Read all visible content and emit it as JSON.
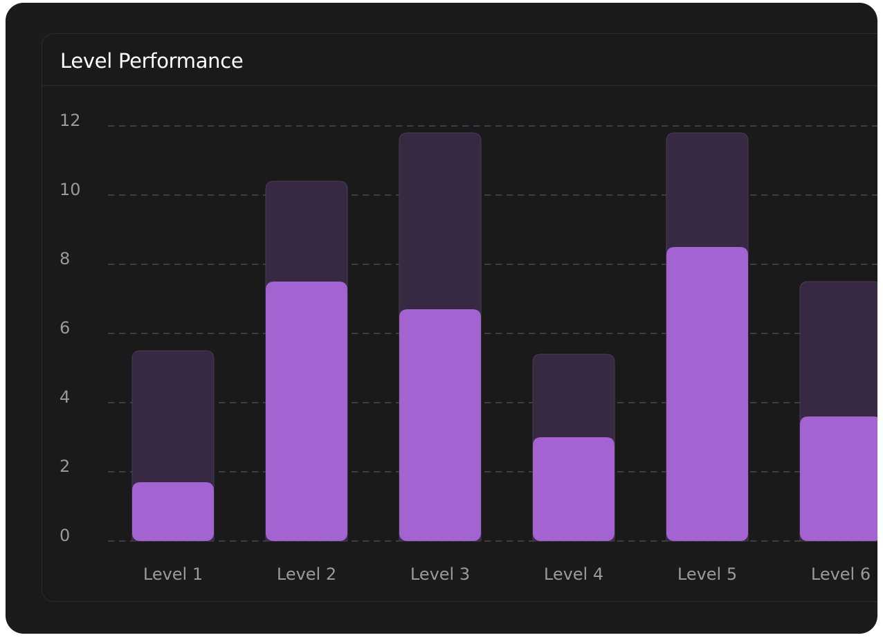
{
  "card": {
    "title": "Level Performance"
  },
  "colors": {
    "background": "#1b1b1d",
    "total_bar": "#372941",
    "value_bar": "#a363d0",
    "gridline": "#4a4a4d",
    "label": "#9a9a9d",
    "title": "#ffffff"
  },
  "chart_data": {
    "type": "bar",
    "categories": [
      "Level 1",
      "Level 2",
      "Level 3",
      "Level 4",
      "Level 5",
      "Level 6"
    ],
    "series": [
      {
        "values": [
          5.5,
          10.4,
          11.8,
          5.4,
          11.8,
          7.5
        ]
      },
      {
        "values": [
          1.7,
          7.5,
          6.7,
          3.0,
          8.5,
          3.6
        ]
      }
    ],
    "overlay": true,
    "ylim": [
      0,
      12
    ],
    "yticks": [
      0,
      2,
      4,
      6,
      8,
      10,
      12
    ],
    "grid": true,
    "xlabel": "",
    "ylabel": ""
  }
}
